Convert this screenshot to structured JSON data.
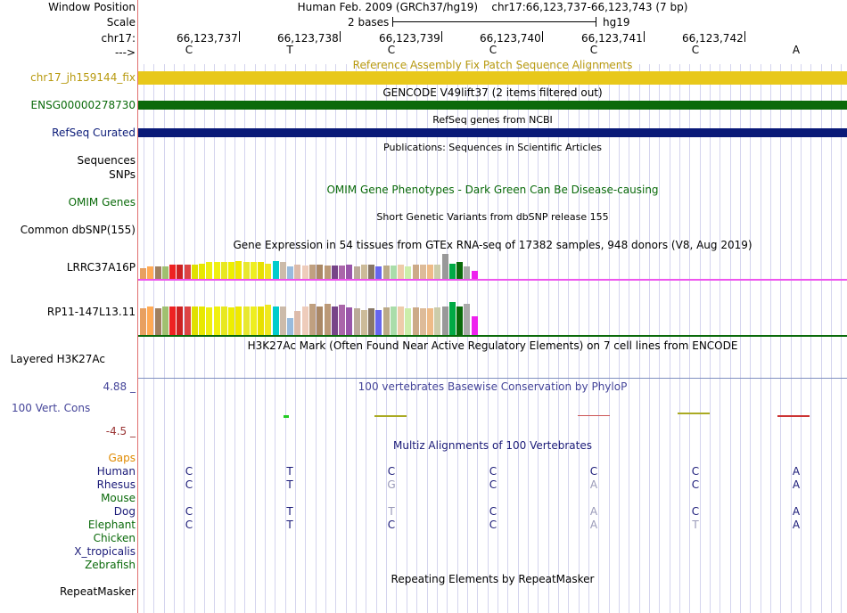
{
  "header": {
    "window_position_label": "Window Position",
    "window_position_text": "Human Feb. 2009 (GRCh37/hg19)    chr17:66,123,737-66,123,743 (7 bp)",
    "scale_label": "Scale",
    "scale_text": "2 bases",
    "scale_assembly": "hg19",
    "chrom_label": "chr17:",
    "strand_label": "--->",
    "positions": [
      "66,123,737",
      "66,123,738",
      "66,123,739",
      "66,123,740",
      "66,123,741",
      "66,123,742"
    ],
    "reference_bases": [
      "C",
      "T",
      "C",
      "C",
      "C",
      "C",
      "A"
    ]
  },
  "tracks": {
    "fix_patch": {
      "title": "Reference Assembly Fix Patch Sequence Alignments",
      "item_label": "chr17_jh159144_fix",
      "color": "#e8c81a",
      "text_color": "#b89a10"
    },
    "gencode": {
      "title": "GENCODE V49lift37 (2 items filtered out)",
      "item_label": "ENSG00000278730",
      "color": "#0a6a0a"
    },
    "refseq": {
      "title": "RefSeq genes from NCBI",
      "item_label": "RefSeq Curated",
      "color": "#0a1a78"
    },
    "publications": {
      "title": "Publications: Sequences in Scientific Articles",
      "labels": [
        "Sequences",
        "SNPs"
      ]
    },
    "omim": {
      "title": "OMIM Gene Phenotypes - Dark Green Can Be Disease-causing",
      "item_label": "OMIM Genes",
      "color": "#0a6a0a"
    },
    "dbsnp": {
      "title": "Short Genetic Variants from dbSNP release 155",
      "item_label": "Common dbSNP(155)"
    },
    "gtex": {
      "title": "Gene Expression in 54 tissues from GTEx RNA-seq of 17382 samples, 948 donors (V8, Aug 2019)",
      "genes": [
        "LRRC37A16P",
        "RP11-147L13.11"
      ],
      "tissue_colors": [
        "#e8a060",
        "#ffaa55",
        "#a08060",
        "#a0c070",
        "#ee2222",
        "#cc2222",
        "#dd4444",
        "#e0e000",
        "#e8e800",
        "#eeee11",
        "#f0f010",
        "#e8e820",
        "#eeee00",
        "#f0e800",
        "#e8e830",
        "#eeee20",
        "#e8e000",
        "#f0e820",
        "#00cccc",
        "#ccbbaa",
        "#99bbdd",
        "#ddbbaa",
        "#eeccbb",
        "#c0a080",
        "#aa8866",
        "#bb9977",
        "#774488",
        "#aa66aa",
        "#9955aa",
        "#bbaa99",
        "#ccbb99",
        "#887766",
        "#6666ee",
        "#bbaa88",
        "#aaddaa",
        "#eeccaa",
        "#cceeaa",
        "#ccaa88",
        "#ddbb99",
        "#eebb88",
        "#ccccaa",
        "#999999",
        "#00aa44",
        "#0a6a0a",
        "#aaaaaa",
        "#ee22ee"
      ],
      "values_gene1": [
        0.4,
        0.45,
        0.45,
        0.45,
        0.5,
        0.5,
        0.5,
        0.5,
        0.55,
        0.6,
        0.6,
        0.62,
        0.62,
        0.65,
        0.6,
        0.6,
        0.6,
        0.55,
        0.65,
        0.6,
        0.45,
        0.5,
        0.48,
        0.5,
        0.5,
        0.48,
        0.48,
        0.48,
        0.5,
        0.45,
        0.5,
        0.5,
        0.45,
        0.48,
        0.48,
        0.5,
        0.45,
        0.5,
        0.52,
        0.5,
        0.52,
        0.9,
        0.55,
        0.62,
        0.45,
        0.3
      ],
      "values_gene2": [
        0.5,
        0.55,
        0.5,
        0.55,
        0.55,
        0.55,
        0.55,
        0.55,
        0.55,
        0.52,
        0.55,
        0.55,
        0.52,
        0.55,
        0.55,
        0.55,
        0.55,
        0.58,
        0.55,
        0.55,
        0.32,
        0.45,
        0.55,
        0.6,
        0.55,
        0.6,
        0.55,
        0.58,
        0.52,
        0.5,
        0.48,
        0.5,
        0.48,
        0.52,
        0.55,
        0.55,
        0.5,
        0.52,
        0.5,
        0.5,
        0.52,
        0.55,
        0.62,
        0.55,
        0.6,
        0.35
      ],
      "divider_color": "#ee55ee",
      "bottom_color": "#0a6a0a"
    },
    "h3k27ac": {
      "title": "H3K27Ac Mark (Often Found Near Active Regulatory Elements) on 7 cell lines from ENCODE",
      "item_label": "Layered H3K27Ac"
    },
    "phylop": {
      "title": "100 vertebrates Basewise Conservation by PhyloP",
      "item_label": "100 Vert. Cons",
      "max_label": "4.88 _",
      "min_label": "-4.5 _",
      "color": "#444499",
      "min_color": "#993333"
    },
    "multiz": {
      "title": "Multiz Alignments of 100 Vertebrates",
      "gaps_label": "Gaps",
      "species": [
        {
          "name": "Human",
          "color": "#1a1a78",
          "bases": [
            "C",
            "T",
            "C",
            "C",
            "C",
            "C",
            "A"
          ],
          "faded": [
            false,
            false,
            false,
            false,
            false,
            false,
            false
          ]
        },
        {
          "name": "Rhesus",
          "color": "#1a1a78",
          "bases": [
            "C",
            "T",
            "G",
            "C",
            "A",
            "C",
            "A"
          ],
          "faded": [
            false,
            false,
            true,
            false,
            true,
            false,
            false
          ]
        },
        {
          "name": "Mouse",
          "color": "#0a6a0a",
          "bases": [
            "",
            "",
            "",
            "",
            "",
            "",
            ""
          ],
          "faded": [
            false,
            false,
            false,
            false,
            false,
            false,
            false
          ]
        },
        {
          "name": "Dog",
          "color": "#1a1a78",
          "bases": [
            "C",
            "T",
            "T",
            "C",
            "A",
            "C",
            "A"
          ],
          "faded": [
            false,
            false,
            true,
            false,
            true,
            false,
            false
          ]
        },
        {
          "name": "Elephant",
          "color": "#0a6a0a",
          "bases": [
            "C",
            "T",
            "C",
            "C",
            "A",
            "T",
            "A"
          ],
          "faded": [
            false,
            false,
            false,
            false,
            true,
            true,
            false
          ]
        },
        {
          "name": "Chicken",
          "color": "#0a6a0a",
          "bases": [
            "",
            "",
            "",
            "",
            "",
            "",
            ""
          ],
          "faded": [
            false,
            false,
            false,
            false,
            false,
            false,
            false
          ]
        },
        {
          "name": "X_tropicalis",
          "color": "#1a1a78",
          "bases": [
            "",
            "",
            "",
            "",
            "",
            "",
            ""
          ],
          "faded": [
            false,
            false,
            false,
            false,
            false,
            false,
            false
          ]
        },
        {
          "name": "Zebrafish",
          "color": "#0a6a0a",
          "bases": [
            "",
            "",
            "",
            "",
            "",
            "",
            ""
          ],
          "faded": [
            false,
            false,
            false,
            false,
            false,
            false,
            false
          ]
        }
      ]
    },
    "repeatmasker": {
      "title": "Repeating Elements by RepeatMasker",
      "item_label": "RepeatMasker"
    }
  }
}
